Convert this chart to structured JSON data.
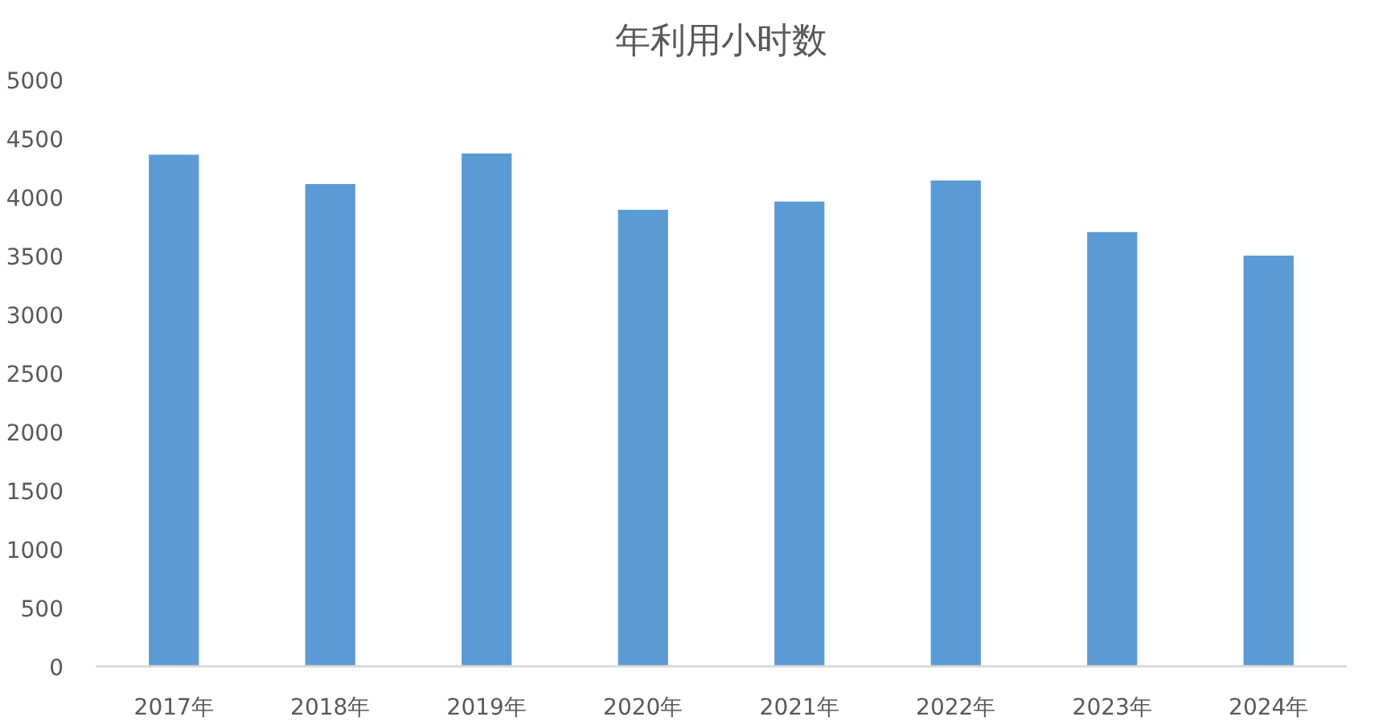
{
  "chart_data": {
    "type": "bar",
    "title": "年利用小时数",
    "categories": [
      "2017年",
      "2018年",
      "2019年",
      "2020年",
      "2021年",
      "2022年",
      "2023年",
      "2024年"
    ],
    "values": [
      4360,
      4110,
      4370,
      3890,
      3960,
      4140,
      3700,
      3500
    ],
    "color": "#5b9bd5",
    "ylim": [
      0,
      5000
    ],
    "yticks": [
      0,
      500,
      1000,
      1500,
      2000,
      2500,
      3000,
      3500,
      4000,
      4500,
      5000
    ]
  }
}
